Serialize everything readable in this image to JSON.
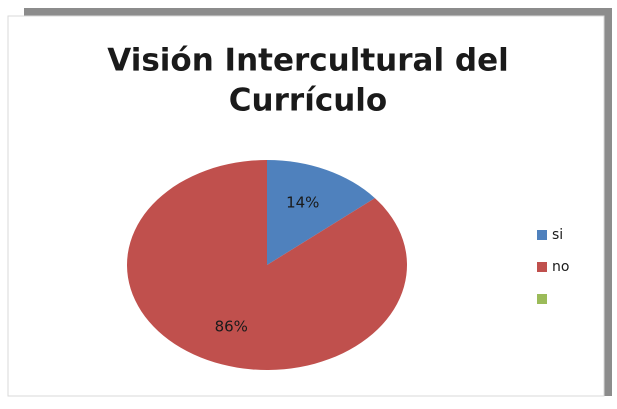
{
  "chart_data": {
    "type": "pie",
    "title": "Visión Intercultural del Currículo",
    "title_lines": [
      "Visión Intercultural del",
      "Currículo"
    ],
    "categories": [
      "si",
      "no",
      null
    ],
    "values": [
      14,
      86,
      0
    ],
    "value_labels": [
      "14%",
      "86%",
      null
    ],
    "colors": [
      "#4f81bd",
      "#c0504d",
      "#9bbb59"
    ],
    "legend": "right"
  }
}
